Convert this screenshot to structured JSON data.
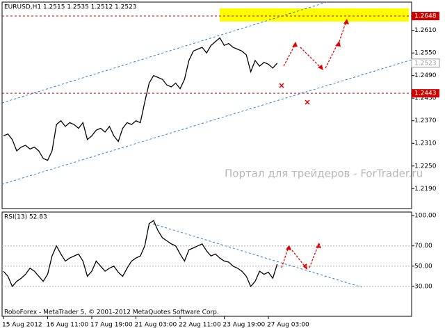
{
  "chart_data": [
    {
      "type": "line",
      "title": "EURUSD,H1  1.2515 1.2535 1.2512 1.2523",
      "watermark": "Портал для трейдеров - ForTrader.ru",
      "series": [
        {
          "color": "#000000",
          "values": [
            1.233,
            1.2335,
            1.232,
            1.229,
            1.23,
            1.2305,
            1.2295,
            1.23,
            1.229,
            1.227,
            1.2265,
            1.229,
            1.236,
            1.237,
            1.2355,
            1.2365,
            1.236,
            1.235,
            1.2365,
            1.232,
            1.233,
            1.2345,
            1.235,
            1.234,
            1.2355,
            1.233,
            1.2315,
            1.235,
            1.2365,
            1.236,
            1.237,
            1.2365,
            1.242,
            1.247,
            1.249,
            1.2485,
            1.248,
            1.2465,
            1.246,
            1.247,
            1.2455,
            1.248,
            1.253,
            1.2555,
            1.256,
            1.2565,
            1.255,
            1.257,
            1.258,
            1.259,
            1.257,
            1.2575,
            1.2565,
            1.256,
            1.2555,
            1.2545,
            1.25,
            1.253,
            1.2515,
            1.2525,
            1.252,
            1.251,
            1.2523
          ]
        }
      ],
      "ylim": [
        1.2137,
        1.2685
      ],
      "yticks": [
        {
          "value": 1.261,
          "label": "1.2610"
        },
        {
          "value": 1.255,
          "label": "1.2550"
        },
        {
          "value": 1.249,
          "label": "1.2490"
        },
        {
          "value": 1.243,
          "label": "1.2430"
        },
        {
          "value": 1.237,
          "label": "1.2370"
        },
        {
          "value": 1.231,
          "label": "1.2310"
        },
        {
          "value": 1.225,
          "label": "1.2250"
        },
        {
          "value": 1.219,
          "label": "1.2190"
        }
      ],
      "levels": [
        {
          "value": 1.2648,
          "label": "1.2648",
          "color": "#cc0000"
        },
        {
          "value": 1.2443,
          "label": "1.2443",
          "color": "#cc0000"
        }
      ],
      "current": {
        "value": 1.2523,
        "label": "1.2523"
      }
    },
    {
      "type": "line",
      "title": "RSI(13) 52.83",
      "footer": "RoboForex - MetaTrader 5, © 2001-2012 MetaQuotes Software Corp.",
      "categories": [
        "15 Aug 2012",
        null,
        null,
        null,
        null,
        null,
        null,
        null,
        null,
        null,
        "16 Aug 11:00",
        null,
        null,
        null,
        null,
        null,
        null,
        null,
        null,
        null,
        "17 Aug 19:00",
        null,
        null,
        null,
        null,
        null,
        null,
        null,
        null,
        null,
        "21 Aug 03:00",
        null,
        null,
        null,
        null,
        null,
        null,
        null,
        null,
        null,
        "22 Aug 11:00",
        null,
        null,
        null,
        null,
        null,
        null,
        null,
        null,
        null,
        "23 Aug 19:00",
        null,
        null,
        null,
        null,
        null,
        null,
        null,
        null,
        null,
        "27 Aug 03:00",
        null,
        null
      ],
      "series": [
        {
          "color": "#000000",
          "values": [
            45,
            40,
            30,
            35,
            38,
            42,
            48,
            45,
            40,
            35,
            42,
            60,
            70,
            62,
            55,
            58,
            60,
            62,
            55,
            40,
            45,
            55,
            50,
            45,
            48,
            50,
            44,
            40,
            48,
            55,
            58,
            60,
            70,
            92,
            95,
            85,
            78,
            75,
            72,
            70,
            62,
            55,
            66,
            68,
            70,
            72,
            65,
            60,
            62,
            58,
            55,
            54,
            50,
            48,
            45,
            40,
            30,
            35,
            45,
            42,
            44,
            38,
            52
          ]
        }
      ],
      "ylim": [
        0.5,
        103.4
      ],
      "yticks": [
        {
          "value": 100,
          "label": "100.00"
        },
        {
          "value": 70,
          "label": "70.00"
        },
        {
          "value": 50,
          "label": "50.00"
        },
        {
          "value": 30,
          "label": "30.00"
        }
      ],
      "grid": [
        70,
        50,
        30
      ]
    }
  ]
}
